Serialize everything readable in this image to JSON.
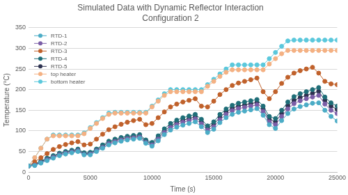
{
  "chart_data": {
    "type": "line",
    "title": "Simulated Data with Dynamic Reflector Interaction",
    "subtitle": "Configuration 2",
    "x_label": "Time (s)",
    "y_label": "Temperature (°C)",
    "xlim": [
      0,
      25000
    ],
    "xticks": [
      0,
      5000,
      10000,
      15000,
      20000,
      25000
    ],
    "ylim": [
      0,
      350
    ],
    "yticks": [
      0,
      50,
      100,
      150,
      200,
      250,
      300,
      350
    ],
    "grid": "y",
    "legend": "top-left",
    "marker": "circle",
    "line_style": "solid",
    "x": [
      0,
      500,
      1000,
      1500,
      2000,
      2500,
      3000,
      3500,
      4000,
      4500,
      5000,
      5500,
      6000,
      6500,
      7000,
      7500,
      8000,
      8500,
      9000,
      9500,
      10000,
      10500,
      11000,
      11500,
      12000,
      12500,
      13000,
      13500,
      14000,
      14500,
      15000,
      15500,
      16000,
      16500,
      17000,
      17500,
      18000,
      18500,
      19000,
      19500,
      20000,
      20500,
      21000,
      21500,
      22000,
      22500,
      23000,
      23500,
      24000,
      24500,
      25000
    ],
    "series": [
      {
        "name": "RTD-1",
        "color": "#4bacc6",
        "values": [
          15,
          16,
          22,
          28,
          34,
          40,
          44,
          47,
          50,
          42,
          42,
          50,
          58,
          66,
          71,
          75,
          78,
          80,
          82,
          70,
          63,
          76,
          91,
          102,
          109,
          114,
          118,
          122,
          110,
          96,
          104,
          120,
          132,
          140,
          145,
          148,
          151,
          154,
          138,
          115,
          106,
          125,
          142,
          153,
          159,
          163,
          167,
          168,
          150,
          135,
          124
        ]
      },
      {
        "name": "RTD-2",
        "color": "#7b5ea7",
        "values": [
          15,
          17,
          23,
          30,
          36,
          42,
          46,
          49,
          52,
          43,
          44,
          52,
          60,
          69,
          74,
          78,
          81,
          83,
          85,
          72,
          66,
          80,
          96,
          108,
          115,
          121,
          125,
          129,
          117,
          102,
          110,
          127,
          140,
          149,
          154,
          157,
          160,
          163,
          147,
          122,
          115,
          135,
          153,
          166,
          173,
          178,
          182,
          186,
          165,
          150,
          142
        ]
      },
      {
        "name": "RTD-3",
        "color": "#c0612b",
        "values": [
          15,
          25,
          35,
          45,
          55,
          62,
          67,
          71,
          74,
          66,
          68,
          80,
          92,
          103,
          110,
          116,
          121,
          125,
          128,
          115,
          118,
          132,
          146,
          158,
          165,
          170,
          174,
          178,
          160,
          158,
          172,
          188,
          200,
          210,
          216,
          220,
          224,
          228,
          195,
          178,
          195,
          215,
          230,
          240,
          246,
          250,
          254,
          240,
          220,
          214,
          212
        ]
      },
      {
        "name": "RTD-4",
        "color": "#1f6e78",
        "values": [
          15,
          20,
          27,
          34,
          40,
          46,
          50,
          53,
          56,
          47,
          48,
          56,
          66,
          75,
          80,
          84,
          87,
          89,
          91,
          78,
          72,
          88,
          105,
          118,
          126,
          132,
          136,
          140,
          128,
          112,
          122,
          140,
          153,
          162,
          167,
          170,
          173,
          176,
          160,
          135,
          130,
          150,
          170,
          183,
          190,
          195,
          200,
          205,
          182,
          168,
          160
        ]
      },
      {
        "name": "RTD-5",
        "color": "#2d3250",
        "values": [
          15,
          18,
          25,
          32,
          38,
          44,
          48,
          51,
          54,
          45,
          46,
          54,
          63,
          72,
          77,
          81,
          84,
          86,
          88,
          75,
          69,
          84,
          100,
          112,
          120,
          126,
          130,
          134,
          122,
          107,
          116,
          133,
          146,
          155,
          160,
          163,
          166,
          169,
          153,
          128,
          122,
          142,
          161,
          174,
          181,
          186,
          191,
          196,
          174,
          160,
          152
        ]
      },
      {
        "name": "top heater",
        "color": "#f4b183",
        "values": [
          15,
          35,
          58,
          80,
          88,
          88,
          88,
          88,
          88,
          93,
          106,
          118,
          130,
          140,
          143,
          143,
          143,
          143,
          143,
          143,
          158,
          172,
          186,
          195,
          195,
          195,
          195,
          195,
          195,
          208,
          220,
          232,
          242,
          248,
          248,
          248,
          248,
          248,
          248,
          262,
          275,
          287,
          295,
          295,
          295,
          295,
          295,
          295,
          295,
          295,
          295
        ]
      },
      {
        "name": "bottom heater",
        "color": "#5bc8dc",
        "values": [
          15,
          35,
          58,
          80,
          90,
          90,
          90,
          90,
          90,
          95,
          108,
          120,
          132,
          143,
          145,
          145,
          145,
          145,
          145,
          145,
          160,
          175,
          190,
          200,
          200,
          200,
          200,
          200,
          200,
          212,
          225,
          238,
          250,
          260,
          260,
          260,
          260,
          260,
          260,
          275,
          290,
          305,
          318,
          320,
          320,
          320,
          320,
          320,
          320,
          320,
          320
        ]
      }
    ]
  }
}
